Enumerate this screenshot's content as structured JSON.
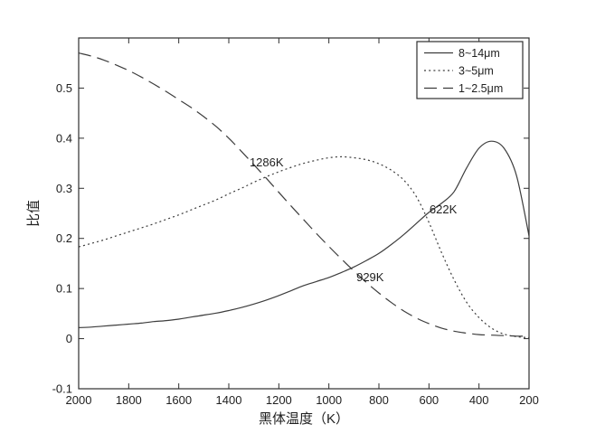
{
  "figure": {
    "background": "#ffffff",
    "line_color": "#3d3d3d",
    "frame_color": "#2e2e2e",
    "text_color": "#1f1f1f"
  },
  "chart_data": {
    "type": "line",
    "title": "",
    "xlabel": "黑体温度（K）",
    "ylabel": "比值",
    "xlim": [
      2000,
      200
    ],
    "x_reversed": true,
    "ylim": [
      -0.1,
      0.6
    ],
    "grid": false,
    "x_ticks": [
      2000,
      1800,
      1600,
      1400,
      1200,
      1000,
      800,
      600,
      400,
      200
    ],
    "y_ticks": [
      {
        "v": -0.1,
        "label": "-0.1"
      },
      {
        "v": 0,
        "label": "0"
      },
      {
        "v": 0.1,
        "label": "0.1"
      },
      {
        "v": 0.2,
        "label": "0.2"
      },
      {
        "v": 0.3,
        "label": "0.3"
      },
      {
        "v": 0.4,
        "label": "0.4"
      },
      {
        "v": 0.5,
        "label": "0.5"
      }
    ],
    "legend": {
      "position": "top-right"
    },
    "x": [
      2000,
      1950,
      1900,
      1850,
      1800,
      1750,
      1700,
      1650,
      1600,
      1550,
      1500,
      1450,
      1400,
      1350,
      1300,
      1250,
      1200,
      1150,
      1100,
      1050,
      1000,
      950,
      900,
      850,
      800,
      750,
      700,
      650,
      600,
      550,
      500,
      450,
      400,
      350,
      300,
      250,
      200
    ],
    "series": [
      {
        "name": "8~14μm",
        "style": "solid",
        "y": [
          0.022,
          0.023,
          0.025,
          0.027,
          0.029,
          0.031,
          0.034,
          0.036,
          0.039,
          0.043,
          0.047,
          0.051,
          0.056,
          0.062,
          0.069,
          0.077,
          0.086,
          0.096,
          0.106,
          0.114,
          0.122,
          0.132,
          0.143,
          0.156,
          0.17,
          0.188,
          0.208,
          0.23,
          0.252,
          0.27,
          0.293,
          0.34,
          0.38,
          0.394,
          0.38,
          0.325,
          0.205
        ]
      },
      {
        "name": "3~5μm",
        "style": "dotted",
        "y": [
          0.183,
          0.19,
          0.197,
          0.205,
          0.213,
          0.221,
          0.229,
          0.238,
          0.247,
          0.257,
          0.267,
          0.277,
          0.289,
          0.3,
          0.312,
          0.323,
          0.333,
          0.342,
          0.35,
          0.356,
          0.361,
          0.363,
          0.361,
          0.357,
          0.349,
          0.336,
          0.316,
          0.283,
          0.232,
          0.172,
          0.118,
          0.073,
          0.042,
          0.021,
          0.009,
          0.004,
          0.002
        ]
      },
      {
        "name": "1~2.5μm",
        "style": "dashed",
        "y": [
          0.57,
          0.564,
          0.556,
          0.546,
          0.535,
          0.522,
          0.508,
          0.493,
          0.477,
          0.461,
          0.443,
          0.423,
          0.4,
          0.374,
          0.347,
          0.32,
          0.292,
          0.264,
          0.237,
          0.21,
          0.184,
          0.159,
          0.135,
          0.112,
          0.091,
          0.072,
          0.055,
          0.041,
          0.03,
          0.021,
          0.015,
          0.011,
          0.008,
          0.007,
          0.006,
          0.005,
          0.005
        ]
      }
    ],
    "annotations": [
      {
        "text": "1286K",
        "t": 1317,
        "v": 0.344
      },
      {
        "text": "929K",
        "t": 890,
        "v": 0.115
      },
      {
        "text": "622K",
        "t": 598,
        "v": 0.25
      }
    ]
  }
}
